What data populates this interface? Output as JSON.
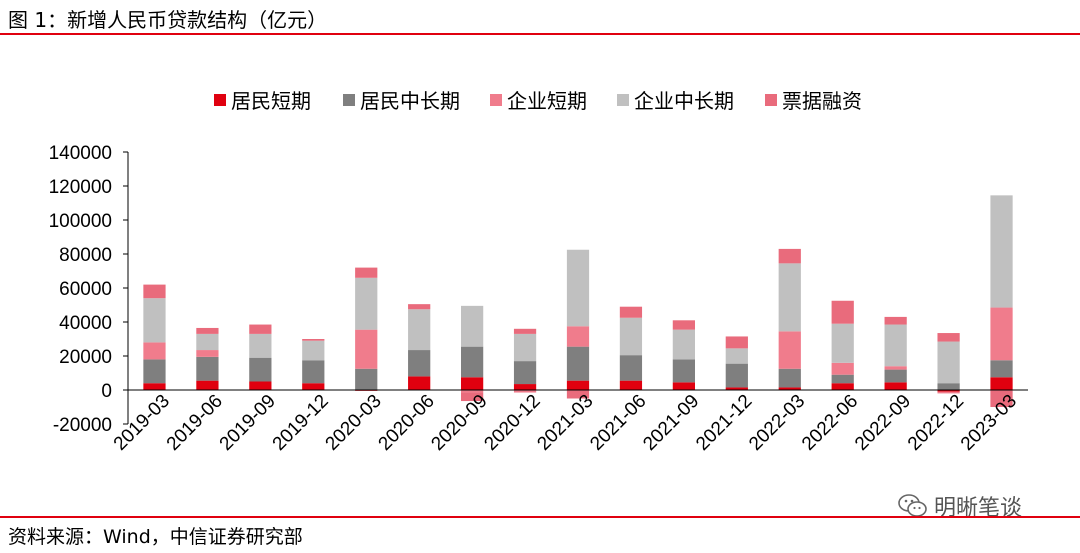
{
  "title": "图 1：新增人民币贷款结构（亿元）",
  "source": "资料来源：Wind，中信证券研究部",
  "watermark": "明晰笔谈",
  "watermark_icon": "wechat-icon",
  "colors": {
    "rule": "#e0000f"
  },
  "chart_data": {
    "type": "bar",
    "stacked": true,
    "title": "",
    "xlabel": "",
    "ylabel": "",
    "ylim": [
      -20000,
      140000
    ],
    "yticks": [
      -20000,
      0,
      20000,
      40000,
      60000,
      80000,
      100000,
      120000,
      140000
    ],
    "ytick_labels": [
      "-20000",
      "0",
      "20000",
      "40000",
      "60000",
      "80000",
      "100000",
      "120000",
      "140000"
    ],
    "grid": false,
    "legend_position": "top",
    "categories": [
      "2019-03",
      "2019-06",
      "2019-09",
      "2019-12",
      "2020-03",
      "2020-06",
      "2020-09",
      "2020-12",
      "2021-03",
      "2021-06",
      "2021-09",
      "2021-12",
      "2022-03",
      "2022-06",
      "2022-09",
      "2022-12",
      "2023-03"
    ],
    "series": [
      {
        "name": "居民短期",
        "color": "#e0000f",
        "values": [
          4000,
          5500,
          5000,
          4000,
          -500,
          8000,
          7500,
          3500,
          5500,
          5500,
          4500,
          1500,
          1500,
          4000,
          4500,
          -1000,
          7500
        ]
      },
      {
        "name": "居民中长期",
        "color": "#7f7f7f",
        "values": [
          14000,
          14000,
          14000,
          13500,
          12500,
          15500,
          18000,
          13500,
          20000,
          15000,
          13500,
          14000,
          11000,
          5000,
          7500,
          4000,
          10000
        ]
      },
      {
        "name": "企业短期",
        "color": "#f07c8c",
        "values": [
          10000,
          4000,
          0,
          0,
          23000,
          0,
          -1500,
          -1500,
          12000,
          0,
          0,
          0,
          22000,
          7000,
          2000,
          -1000,
          31000
        ]
      },
      {
        "name": "企业中长期",
        "color": "#c0c0c0",
        "values": [
          26000,
          9500,
          14000,
          11500,
          30500,
          24000,
          24000,
          16000,
          45000,
          22000,
          17500,
          9000,
          40000,
          23000,
          24500,
          24500,
          66000
        ]
      },
      {
        "name": "票据融资",
        "color": "#e96b7c",
        "values": [
          8000,
          3500,
          5500,
          1000,
          6000,
          3000,
          -5000,
          3000,
          -5000,
          6500,
          5500,
          7000,
          8500,
          13500,
          4500,
          5000,
          -10000
        ]
      }
    ]
  }
}
